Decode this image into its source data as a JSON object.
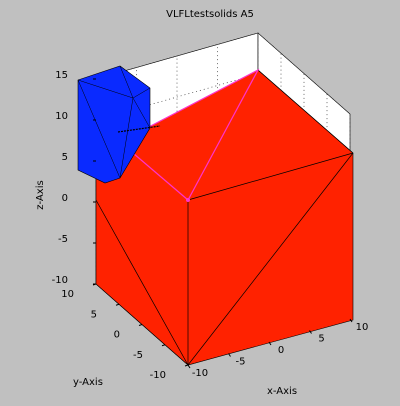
{
  "chart_data": {
    "type": "solids3d",
    "title": "VLFLtestsolids A5",
    "xlabel": "x-Axis",
    "ylabel": "y-Axis",
    "zlabel": "z-Axis",
    "xlim": [
      -10,
      10
    ],
    "ylim": [
      -10,
      10
    ],
    "zlim": [
      -10,
      15
    ],
    "xticks": [
      -10,
      -5,
      0,
      5,
      10
    ],
    "yticks": [
      -10,
      -5,
      0,
      5,
      10
    ],
    "zticks": [
      -10,
      -5,
      0,
      5,
      10,
      15
    ],
    "grid": true
  }
}
